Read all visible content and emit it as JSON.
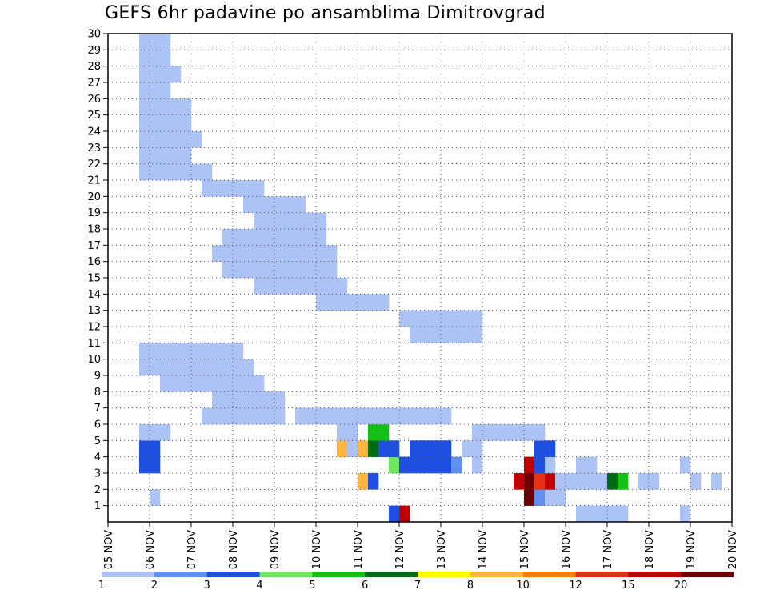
{
  "chart_data": {
    "type": "heatmap",
    "title": "GEFS 6hr padavine po ansamblima Dimitrovgrad",
    "xlabel": "",
    "ylabel": "",
    "x_ticks": [
      "05 NOV",
      "06 NOV",
      "07 NOV",
      "08 NOV",
      "09 NOV",
      "10 NOV",
      "11 NOV",
      "12 NOV",
      "13 NOV",
      "14 NOV",
      "15 NOV",
      "16 NOV",
      "17 NOV",
      "18 NOV",
      "19 NOV",
      "20 NOV"
    ],
    "y_ticks": [
      "1",
      "2",
      "3",
      "4",
      "5",
      "6",
      "7",
      "8",
      "9",
      "10",
      "11",
      "12",
      "13",
      "14",
      "15",
      "16",
      "17",
      "18",
      "19",
      "20",
      "21",
      "22",
      "23",
      "24",
      "25",
      "26",
      "27",
      "28",
      "29",
      "30"
    ],
    "x_steps": 60,
    "y_range": [
      0,
      30
    ],
    "grid": true,
    "colorbar": {
      "levels": [
        "1",
        "2",
        "3",
        "4",
        "5",
        "6",
        "7",
        "8",
        "10",
        "12",
        "15",
        "20"
      ],
      "colors": [
        "#aec3f5",
        "#5f8ff0",
        "#1f4fe0",
        "#6fe660",
        "#14c014",
        "#006a14",
        "#ffff00",
        "#ffb43c",
        "#ff7f00",
        "#e63214",
        "#c00000",
        "#6a0000"
      ]
    },
    "cells": [
      [
        27,
        0,
        "c"
      ],
      [
        28,
        0,
        "k"
      ],
      [
        45,
        0,
        "a"
      ],
      [
        46,
        0,
        "a"
      ],
      [
        47,
        0,
        "a"
      ],
      [
        48,
        0,
        "a"
      ],
      [
        49,
        0,
        "a"
      ],
      [
        55,
        0,
        "a"
      ],
      [
        4,
        1,
        "a"
      ],
      [
        40,
        1,
        "l"
      ],
      [
        41,
        1,
        "b"
      ],
      [
        42,
        1,
        "a"
      ],
      [
        43,
        1,
        "a"
      ],
      [
        24,
        2,
        "h"
      ],
      [
        25,
        2,
        "c"
      ],
      [
        39,
        2,
        "k"
      ],
      [
        40,
        2,
        "l"
      ],
      [
        41,
        2,
        "j"
      ],
      [
        42,
        2,
        "k"
      ],
      [
        43,
        2,
        "a"
      ],
      [
        44,
        2,
        "a"
      ],
      [
        45,
        2,
        "a"
      ],
      [
        46,
        2,
        "a"
      ],
      [
        47,
        2,
        "a"
      ],
      [
        48,
        2,
        "f"
      ],
      [
        49,
        2,
        "e"
      ],
      [
        51,
        2,
        "a"
      ],
      [
        52,
        2,
        "a"
      ],
      [
        56,
        2,
        "a"
      ],
      [
        58,
        2,
        "a"
      ],
      [
        3,
        3,
        "c"
      ],
      [
        4,
        3,
        "c"
      ],
      [
        27,
        3,
        "d"
      ],
      [
        28,
        3,
        "c"
      ],
      [
        29,
        3,
        "c"
      ],
      [
        30,
        3,
        "c"
      ],
      [
        31,
        3,
        "c"
      ],
      [
        32,
        3,
        "c"
      ],
      [
        33,
        3,
        "b"
      ],
      [
        35,
        3,
        "a"
      ],
      [
        40,
        3,
        "k"
      ],
      [
        41,
        3,
        "c"
      ],
      [
        42,
        3,
        "a"
      ],
      [
        45,
        3,
        "a"
      ],
      [
        46,
        3,
        "a"
      ],
      [
        55,
        3,
        "a"
      ],
      [
        3,
        4,
        "c"
      ],
      [
        4,
        4,
        "c"
      ],
      [
        22,
        4,
        "h"
      ],
      [
        23,
        4,
        "a"
      ],
      [
        24,
        4,
        "h"
      ],
      [
        25,
        4,
        "f"
      ],
      [
        26,
        4,
        "c"
      ],
      [
        27,
        4,
        "c"
      ],
      [
        29,
        4,
        "c"
      ],
      [
        30,
        4,
        "c"
      ],
      [
        31,
        4,
        "c"
      ],
      [
        32,
        4,
        "c"
      ],
      [
        34,
        4,
        "a"
      ],
      [
        35,
        4,
        "a"
      ],
      [
        41,
        4,
        "c"
      ],
      [
        42,
        4,
        "c"
      ],
      [
        3,
        5,
        "a"
      ],
      [
        4,
        5,
        "a"
      ],
      [
        5,
        5,
        "a"
      ],
      [
        22,
        5,
        "a"
      ],
      [
        23,
        5,
        "a"
      ],
      [
        25,
        5,
        "e"
      ],
      [
        26,
        5,
        "e"
      ],
      [
        35,
        5,
        "a"
      ],
      [
        36,
        5,
        "a"
      ],
      [
        37,
        5,
        "a"
      ],
      [
        38,
        5,
        "a"
      ],
      [
        39,
        5,
        "a"
      ],
      [
        40,
        5,
        "a"
      ],
      [
        41,
        5,
        "a"
      ],
      [
        9,
        6,
        "a"
      ],
      [
        10,
        6,
        "a"
      ],
      [
        11,
        6,
        "a"
      ],
      [
        12,
        6,
        "a"
      ],
      [
        13,
        6,
        "a"
      ],
      [
        14,
        6,
        "a"
      ],
      [
        15,
        6,
        "a"
      ],
      [
        16,
        6,
        "a"
      ],
      [
        18,
        6,
        "a"
      ],
      [
        19,
        6,
        "a"
      ],
      [
        20,
        6,
        "a"
      ],
      [
        21,
        6,
        "a"
      ],
      [
        22,
        6,
        "a"
      ],
      [
        23,
        6,
        "a"
      ],
      [
        24,
        6,
        "a"
      ],
      [
        25,
        6,
        "a"
      ],
      [
        26,
        6,
        "a"
      ],
      [
        27,
        6,
        "a"
      ],
      [
        28,
        6,
        "a"
      ],
      [
        29,
        6,
        "a"
      ],
      [
        30,
        6,
        "a"
      ],
      [
        31,
        6,
        "a"
      ],
      [
        32,
        6,
        "a"
      ],
      [
        10,
        7,
        "a"
      ],
      [
        11,
        7,
        "a"
      ],
      [
        12,
        7,
        "a"
      ],
      [
        13,
        7,
        "a"
      ],
      [
        14,
        7,
        "a"
      ],
      [
        15,
        7,
        "a"
      ],
      [
        16,
        7,
        "a"
      ],
      [
        5,
        8,
        "a"
      ],
      [
        6,
        8,
        "a"
      ],
      [
        7,
        8,
        "a"
      ],
      [
        8,
        8,
        "a"
      ],
      [
        9,
        8,
        "a"
      ],
      [
        10,
        8,
        "a"
      ],
      [
        11,
        8,
        "a"
      ],
      [
        12,
        8,
        "a"
      ],
      [
        13,
        8,
        "a"
      ],
      [
        14,
        8,
        "a"
      ],
      [
        3,
        9,
        "a"
      ],
      [
        4,
        9,
        "a"
      ],
      [
        5,
        9,
        "a"
      ],
      [
        6,
        9,
        "a"
      ],
      [
        7,
        9,
        "a"
      ],
      [
        8,
        9,
        "a"
      ],
      [
        9,
        9,
        "a"
      ],
      [
        10,
        9,
        "a"
      ],
      [
        11,
        9,
        "a"
      ],
      [
        12,
        9,
        "a"
      ],
      [
        13,
        9,
        "a"
      ],
      [
        3,
        10,
        "a"
      ],
      [
        4,
        10,
        "a"
      ],
      [
        5,
        10,
        "a"
      ],
      [
        6,
        10,
        "a"
      ],
      [
        7,
        10,
        "a"
      ],
      [
        8,
        10,
        "a"
      ],
      [
        9,
        10,
        "a"
      ],
      [
        10,
        10,
        "a"
      ],
      [
        11,
        10,
        "a"
      ],
      [
        12,
        10,
        "a"
      ],
      [
        29,
        11,
        "a"
      ],
      [
        30,
        11,
        "a"
      ],
      [
        31,
        11,
        "a"
      ],
      [
        32,
        11,
        "a"
      ],
      [
        33,
        11,
        "a"
      ],
      [
        34,
        11,
        "a"
      ],
      [
        35,
        11,
        "a"
      ],
      [
        28,
        12,
        "a"
      ],
      [
        29,
        12,
        "a"
      ],
      [
        30,
        12,
        "a"
      ],
      [
        31,
        12,
        "a"
      ],
      [
        32,
        12,
        "a"
      ],
      [
        33,
        12,
        "a"
      ],
      [
        34,
        12,
        "a"
      ],
      [
        35,
        12,
        "a"
      ],
      [
        20,
        13,
        "a"
      ],
      [
        21,
        13,
        "a"
      ],
      [
        22,
        13,
        "a"
      ],
      [
        23,
        13,
        "a"
      ],
      [
        24,
        13,
        "a"
      ],
      [
        25,
        13,
        "a"
      ],
      [
        26,
        13,
        "a"
      ],
      [
        14,
        14,
        "a"
      ],
      [
        15,
        14,
        "a"
      ],
      [
        16,
        14,
        "a"
      ],
      [
        17,
        14,
        "a"
      ],
      [
        18,
        14,
        "a"
      ],
      [
        19,
        14,
        "a"
      ],
      [
        20,
        14,
        "a"
      ],
      [
        21,
        14,
        "a"
      ],
      [
        22,
        14,
        "a"
      ],
      [
        11,
        15,
        "a"
      ],
      [
        12,
        15,
        "a"
      ],
      [
        13,
        15,
        "a"
      ],
      [
        14,
        15,
        "a"
      ],
      [
        15,
        15,
        "a"
      ],
      [
        16,
        15,
        "a"
      ],
      [
        17,
        15,
        "a"
      ],
      [
        18,
        15,
        "a"
      ],
      [
        19,
        15,
        "a"
      ],
      [
        20,
        15,
        "a"
      ],
      [
        21,
        15,
        "a"
      ],
      [
        10,
        16,
        "a"
      ],
      [
        11,
        16,
        "a"
      ],
      [
        12,
        16,
        "a"
      ],
      [
        13,
        16,
        "a"
      ],
      [
        14,
        16,
        "a"
      ],
      [
        15,
        16,
        "a"
      ],
      [
        16,
        16,
        "a"
      ],
      [
        17,
        16,
        "a"
      ],
      [
        18,
        16,
        "a"
      ],
      [
        19,
        16,
        "a"
      ],
      [
        20,
        16,
        "a"
      ],
      [
        21,
        16,
        "a"
      ],
      [
        11,
        17,
        "a"
      ],
      [
        12,
        17,
        "a"
      ],
      [
        13,
        17,
        "a"
      ],
      [
        14,
        17,
        "a"
      ],
      [
        15,
        17,
        "a"
      ],
      [
        16,
        17,
        "a"
      ],
      [
        17,
        17,
        "a"
      ],
      [
        18,
        17,
        "a"
      ],
      [
        19,
        17,
        "a"
      ],
      [
        20,
        17,
        "a"
      ],
      [
        14,
        18,
        "a"
      ],
      [
        15,
        18,
        "a"
      ],
      [
        16,
        18,
        "a"
      ],
      [
        17,
        18,
        "a"
      ],
      [
        18,
        18,
        "a"
      ],
      [
        19,
        18,
        "a"
      ],
      [
        20,
        18,
        "a"
      ],
      [
        13,
        19,
        "a"
      ],
      [
        14,
        19,
        "a"
      ],
      [
        15,
        19,
        "a"
      ],
      [
        16,
        19,
        "a"
      ],
      [
        17,
        19,
        "a"
      ],
      [
        18,
        19,
        "a"
      ],
      [
        9,
        20,
        "a"
      ],
      [
        10,
        20,
        "a"
      ],
      [
        11,
        20,
        "a"
      ],
      [
        12,
        20,
        "a"
      ],
      [
        13,
        20,
        "a"
      ],
      [
        14,
        20,
        "a"
      ],
      [
        3,
        21,
        "a"
      ],
      [
        4,
        21,
        "a"
      ],
      [
        5,
        21,
        "a"
      ],
      [
        6,
        21,
        "a"
      ],
      [
        7,
        21,
        "a"
      ],
      [
        8,
        21,
        "a"
      ],
      [
        9,
        21,
        "a"
      ],
      [
        3,
        22,
        "a"
      ],
      [
        4,
        22,
        "a"
      ],
      [
        5,
        22,
        "a"
      ],
      [
        6,
        22,
        "a"
      ],
      [
        7,
        22,
        "a"
      ],
      [
        3,
        23,
        "a"
      ],
      [
        4,
        23,
        "a"
      ],
      [
        5,
        23,
        "a"
      ],
      [
        6,
        23,
        "a"
      ],
      [
        7,
        23,
        "a"
      ],
      [
        8,
        23,
        "a"
      ],
      [
        3,
        24,
        "a"
      ],
      [
        4,
        24,
        "a"
      ],
      [
        5,
        24,
        "a"
      ],
      [
        6,
        24,
        "a"
      ],
      [
        7,
        24,
        "a"
      ],
      [
        3,
        25,
        "a"
      ],
      [
        4,
        25,
        "a"
      ],
      [
        5,
        25,
        "a"
      ],
      [
        6,
        25,
        "a"
      ],
      [
        7,
        25,
        "a"
      ],
      [
        3,
        26,
        "a"
      ],
      [
        4,
        26,
        "a"
      ],
      [
        5,
        26,
        "a"
      ],
      [
        3,
        27,
        "a"
      ],
      [
        4,
        27,
        "a"
      ],
      [
        5,
        27,
        "a"
      ],
      [
        6,
        27,
        "a"
      ],
      [
        3,
        28,
        "a"
      ],
      [
        4,
        28,
        "a"
      ],
      [
        5,
        28,
        "a"
      ],
      [
        3,
        29,
        "a"
      ],
      [
        4,
        29,
        "a"
      ],
      [
        5,
        29,
        "a"
      ]
    ]
  }
}
